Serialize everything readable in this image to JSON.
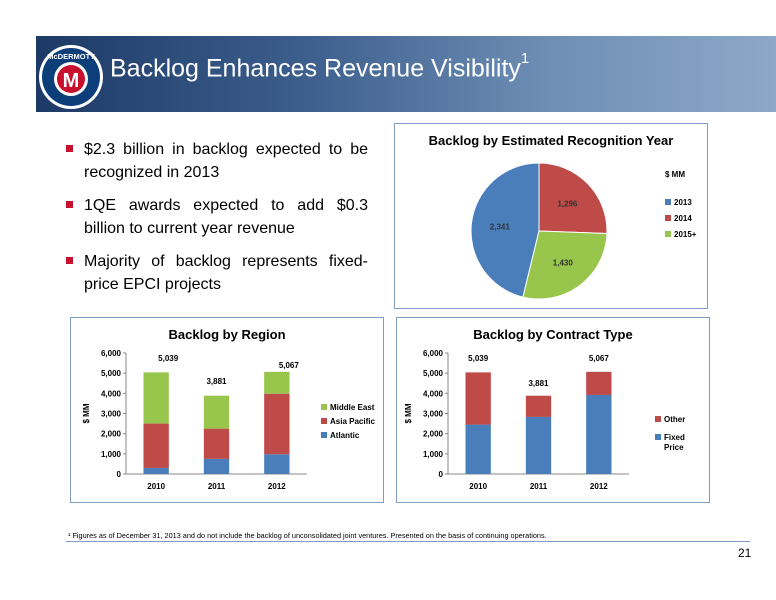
{
  "slide": {
    "title": "Backlog Enhances Revenue Visibility",
    "title_superscript": "1",
    "logo_letter": "M",
    "logo_text": "McDERMOTT",
    "page_number": "21",
    "footnote": "¹ Figures as of December 31, 2013 and do not include the backlog of unconsolidated joint ventures. Presented on the basis of continuing operations.",
    "colors": {
      "banner_dark": "#1d3a66",
      "bullet": "#c8102e",
      "box_border": "#7f9cc1"
    }
  },
  "bullets": [
    "$2.3 billion in backlog expected to be recognized in 2013",
    "1QE awards expected to add $0.3 billion to current year revenue",
    "Majority of backlog represents fixed-price EPCI projects"
  ],
  "chart_data": [
    {
      "id": "recognition",
      "type": "pie",
      "title": "Backlog by Estimated Recognition Year",
      "legend_title": "$ MM",
      "legend_position": "right",
      "slices": [
        {
          "label": "2013",
          "value": 2341,
          "display": "2,341",
          "color": "#4a7ebb"
        },
        {
          "label": "2014",
          "value": 1296,
          "display": "1,296",
          "color": "#be4b48"
        },
        {
          "label": "2015+",
          "value": 1430,
          "display": "1,430",
          "color": "#98c54c"
        }
      ]
    },
    {
      "id": "region",
      "type": "bar",
      "stacked": true,
      "title": "Backlog by Region",
      "ylabel": "$ MM",
      "ylim": [
        0,
        6000
      ],
      "yticks": [
        0,
        1000,
        2000,
        3000,
        4000,
        5000,
        6000
      ],
      "ytick_labels": [
        "0",
        "1,000",
        "2,000",
        "3,000",
        "4,000",
        "5,000",
        "6,000"
      ],
      "categories": [
        "2010",
        "2011",
        "2012"
      ],
      "totals": [
        5039,
        3881,
        5067
      ],
      "total_labels": [
        "5,039",
        "3,881",
        "5,067"
      ],
      "legend_position": "right",
      "series": [
        {
          "name": "Atlantic",
          "values": [
            300,
            750,
            980
          ],
          "color": "#4a7ebb"
        },
        {
          "name": "Asia Pacific",
          "values": [
            2200,
            1500,
            3000
          ],
          "color": "#be4b48"
        },
        {
          "name": "Middle East",
          "values": [
            2539,
            1631,
            1087
          ],
          "color": "#98c54c"
        }
      ]
    },
    {
      "id": "contract",
      "type": "bar",
      "stacked": true,
      "title": "Backlog by Contract Type",
      "ylabel": "$ MM",
      "ylim": [
        0,
        6000
      ],
      "yticks": [
        0,
        1000,
        2000,
        3000,
        4000,
        5000,
        6000
      ],
      "ytick_labels": [
        "0",
        "1,000",
        "2,000",
        "3,000",
        "4,000",
        "5,000",
        "6,000"
      ],
      "categories": [
        "2010",
        "2011",
        "2012"
      ],
      "totals": [
        5039,
        3881,
        5067
      ],
      "total_labels": [
        "5,039",
        "3,881",
        "5,067"
      ],
      "legend_position": "right",
      "series": [
        {
          "name": "Fixed Price",
          "legend_lines": [
            "Fixed",
            "Price"
          ],
          "values": [
            2450,
            2830,
            3920
          ],
          "color": "#4a7ebb"
        },
        {
          "name": "Other",
          "legend_lines": [
            "Other"
          ],
          "values": [
            2589,
            1051,
            1147
          ],
          "color": "#be4b48"
        }
      ]
    }
  ]
}
